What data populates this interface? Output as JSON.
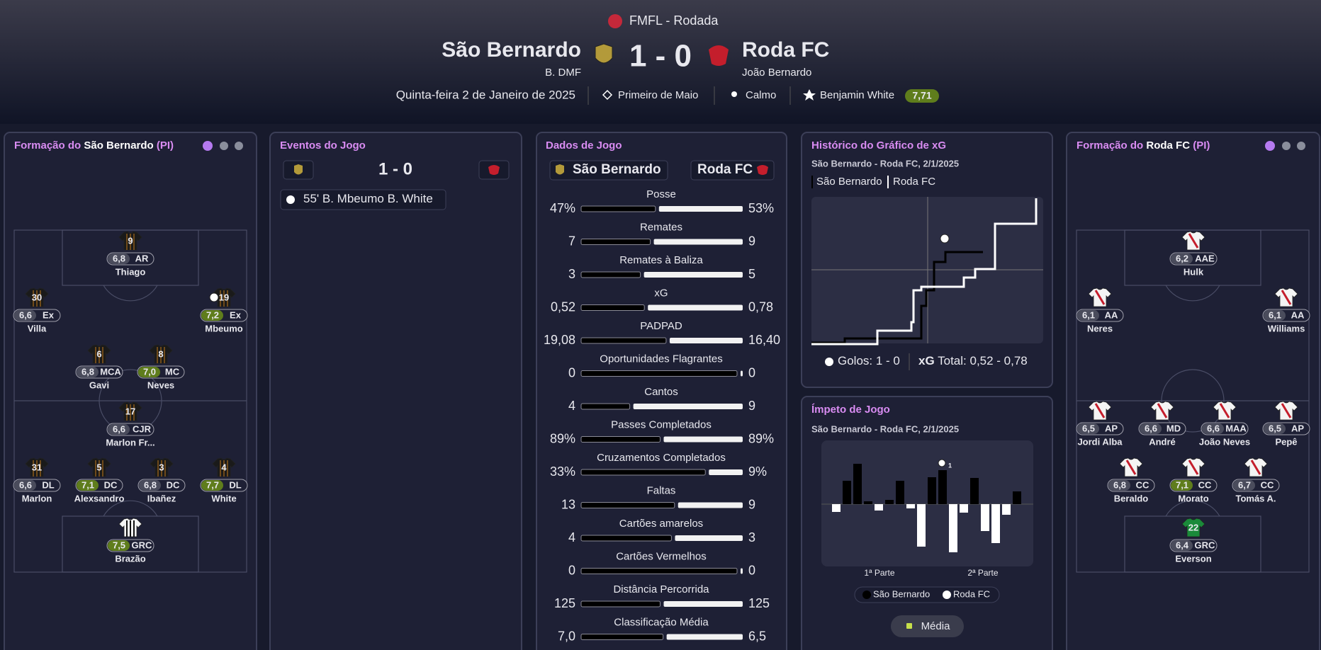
{
  "header": {
    "competition": "FMFL - Rodada",
    "home_team": "São Bernardo",
    "home_manager": "B. DMF",
    "score": "1 - 0",
    "away_team": "Roda FC",
    "away_manager": "João Bernardo",
    "date": "Quinta-feira 2 de Janeiro de 2025",
    "stadium": "Primeiro de Maio",
    "weather": "Calmo",
    "player_of_match": "Benjamin White",
    "player_of_match_rating": "7,71"
  },
  "home_lineup": {
    "title_prefix": "Formação do",
    "team": "São Bernardo",
    "suffix": "(PI)",
    "players": [
      {
        "number": 9,
        "name": "Thiago",
        "rating": "6,8",
        "position": "AR"
      },
      {
        "number": 30,
        "name": "Villa",
        "rating": "6,6",
        "position": "Ex"
      },
      {
        "number": 19,
        "name": "Mbeumo",
        "rating": "7,2",
        "position": "Ex",
        "goal": true
      },
      {
        "number": 6,
        "name": "Gavi",
        "rating": "6,8",
        "position": "MCA"
      },
      {
        "number": 8,
        "name": "Neves",
        "rating": "7,0",
        "position": "MC"
      },
      {
        "number": 17,
        "name": "Marlon Fr...",
        "rating": "6,6",
        "position": "CJR"
      },
      {
        "number": 31,
        "name": "Marlon",
        "rating": "6,6",
        "position": "DL"
      },
      {
        "number": 5,
        "name": "Alexsandro",
        "rating": "7,1",
        "position": "DC"
      },
      {
        "number": 3,
        "name": "Ibañez",
        "rating": "6,8",
        "position": "DC"
      },
      {
        "number": 4,
        "name": "White",
        "rating": "7,7",
        "position": "DL"
      },
      {
        "number": null,
        "name": "Brazão",
        "rating": "7,5",
        "position": "GRC"
      }
    ]
  },
  "events": {
    "title": "Eventos do Jogo",
    "score": "1 - 0",
    "items": [
      {
        "minute": "55'",
        "scorer": "B. Mbeumo",
        "assist": "B. White"
      }
    ]
  },
  "stats": {
    "title": "Dados de Jogo",
    "home_team": "São Bernardo",
    "away_team": "Roda FC",
    "rows": [
      {
        "name": "Posse",
        "home": "47%",
        "away": "53%"
      },
      {
        "name": "Remates",
        "home": "7",
        "away": "9"
      },
      {
        "name": "Remates à Baliza",
        "home": "3",
        "away": "5"
      },
      {
        "name": "xG",
        "home": "0,52",
        "away": "0,78"
      },
      {
        "name": "PADPAD",
        "home": "19,08",
        "away": "16,40"
      },
      {
        "name": "Oportunidades Flagrantes",
        "home": "0",
        "away": "0"
      },
      {
        "name": "Cantos",
        "home": "4",
        "away": "9"
      },
      {
        "name": "Passes Completados",
        "home": "89%",
        "away": "89%"
      },
      {
        "name": "Cruzamentos Completados",
        "home": "33%",
        "away": "9%"
      },
      {
        "name": "Faltas",
        "home": "13",
        "away": "9"
      },
      {
        "name": "Cartões amarelos",
        "home": "4",
        "away": "3"
      },
      {
        "name": "Cartões Vermelhos",
        "home": "0",
        "away": "0"
      },
      {
        "name": "Distância Percorrida",
        "home": "125",
        "away": "125"
      },
      {
        "name": "Classificação Média",
        "home": "7,0",
        "away": "6,5"
      }
    ]
  },
  "xg_chart": {
    "title": "Histórico do Gráfico de xG",
    "subtitle": "São Bernardo - Roda FC, 2/1/2025",
    "legend": [
      "São Bernardo",
      "Roda FC"
    ],
    "goals_label": "Golos:",
    "goals": "1 - 0",
    "xg_label": "xG",
    "total_label": "Total:",
    "total": "0,52 - 0,78"
  },
  "momentum": {
    "title": "Ímpeto de Jogo",
    "subtitle": "São Bernardo - Roda FC, 2/1/2025",
    "goal_count": "1",
    "halves": [
      "1ª Parte",
      "2ª Parte"
    ],
    "legend": [
      "São Bernardo",
      "Roda FC"
    ],
    "button": "Média"
  },
  "away_lineup": {
    "title_prefix": "Formação do",
    "team": "Roda FC",
    "suffix": "(PI)",
    "players": [
      {
        "number": null,
        "name": "Hulk",
        "rating": "6,2",
        "position": "AAE"
      },
      {
        "number": null,
        "name": "Neres",
        "rating": "6,1",
        "position": "AA"
      },
      {
        "number": null,
        "name": "Williams",
        "rating": "6,1",
        "position": "AA"
      },
      {
        "number": null,
        "name": "Jordi Alba",
        "rating": "6,5",
        "position": "AP"
      },
      {
        "number": null,
        "name": "André",
        "rating": "6,6",
        "position": "MD"
      },
      {
        "number": null,
        "name": "João Neves",
        "rating": "6,6",
        "position": "MAA"
      },
      {
        "number": null,
        "name": "Pepê",
        "rating": "6,5",
        "position": "AP"
      },
      {
        "number": null,
        "name": "Beraldo",
        "rating": "6,8",
        "position": "CC"
      },
      {
        "number": null,
        "name": "Morato",
        "rating": "7,1",
        "position": "CC"
      },
      {
        "number": null,
        "name": "Tomás A.",
        "rating": "6,7",
        "position": "CC"
      },
      {
        "number": 22,
        "name": "Everson",
        "rating": "6,4",
        "position": "GRC"
      }
    ]
  }
}
